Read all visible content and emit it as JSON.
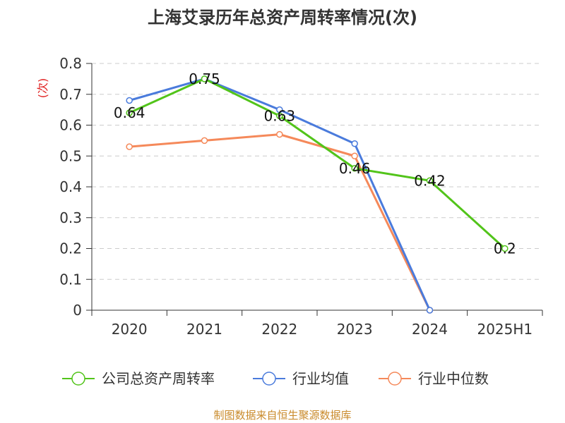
{
  "chart_data": {
    "type": "line",
    "title": "上海艾录历年总资产周转率情况(次)",
    "ylabel": "(次)",
    "categories": [
      "2020",
      "2021",
      "2022",
      "2023",
      "2024",
      "2025H1"
    ],
    "yticks": [
      "0",
      "0.1",
      "0.2",
      "0.3",
      "0.4",
      "0.5",
      "0.6",
      "0.7",
      "0.8"
    ],
    "ylim": [
      0,
      0.8
    ],
    "grid": true,
    "legend_position": "bottom",
    "series": [
      {
        "name": "公司总资产周转率",
        "color": "#52c41a",
        "values": [
          0.64,
          0.75,
          0.63,
          0.46,
          0.42,
          0.2
        ],
        "labels": [
          "0.64",
          "0.75",
          "0.63",
          "0.46",
          "0.42",
          "0.2"
        ]
      },
      {
        "name": "行业均值",
        "color": "#4a7bdc",
        "values": [
          0.68,
          0.75,
          0.65,
          0.54,
          0.0,
          null
        ]
      },
      {
        "name": "行业中位数",
        "color": "#f5895a",
        "values": [
          0.53,
          0.55,
          0.57,
          0.5,
          0.0,
          null
        ]
      }
    ]
  },
  "source": "制图数据来自恒生聚源数据库"
}
